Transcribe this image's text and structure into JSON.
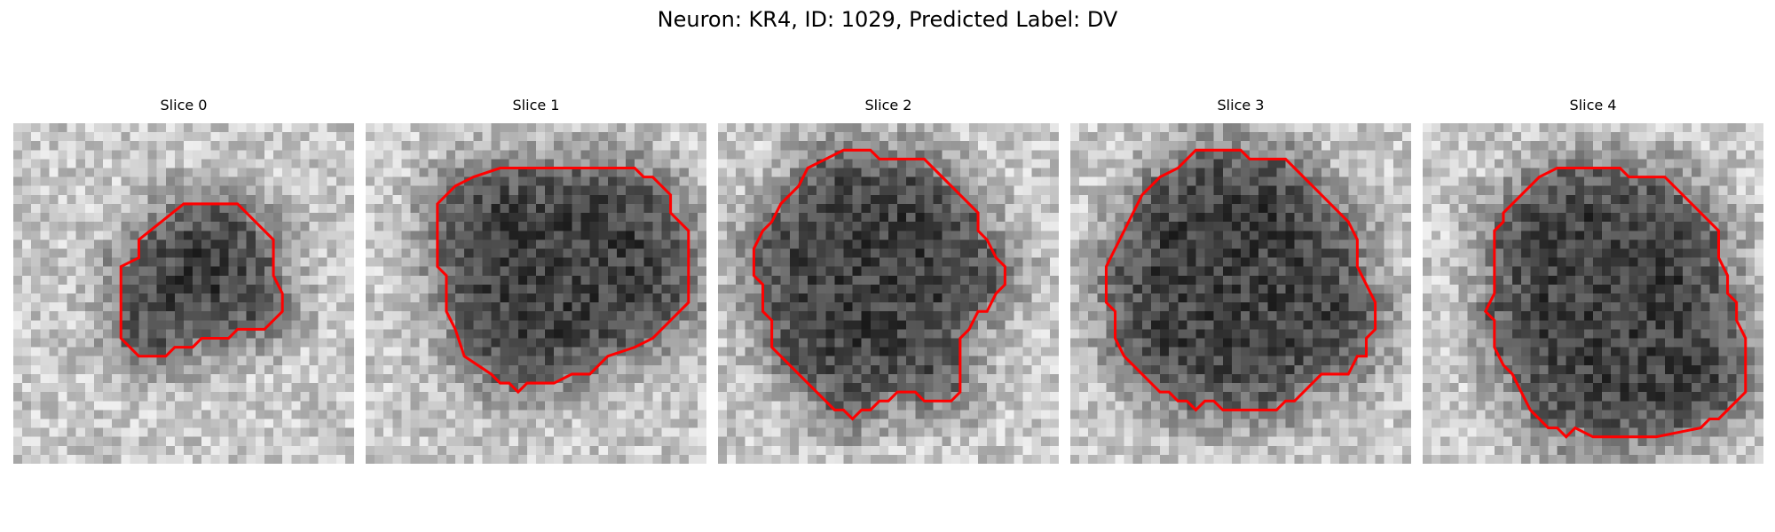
{
  "figure": {
    "title": "Neuron: KR4, ID: 1029, Predicted Label: DV"
  },
  "panels": [
    {
      "title": "Slice 0",
      "contour_color": "#ff0000",
      "contour": [
        [
          19,
          9
        ],
        [
          25,
          9
        ],
        [
          29,
          13
        ],
        [
          29,
          17
        ],
        [
          30,
          19
        ],
        [
          30,
          21
        ],
        [
          28,
          23
        ],
        [
          25,
          23
        ],
        [
          24,
          24
        ],
        [
          21,
          24
        ],
        [
          20,
          25
        ],
        [
          18,
          25
        ],
        [
          17,
          26
        ],
        [
          14,
          26
        ],
        [
          12,
          24
        ],
        [
          12,
          16
        ],
        [
          14,
          15
        ],
        [
          14,
          13
        ]
      ]
    },
    {
      "title": "Slice 1",
      "contour_color": "#ff0000",
      "contour": [
        [
          15,
          5
        ],
        [
          30,
          5
        ],
        [
          31,
          6
        ],
        [
          32,
          6
        ],
        [
          34,
          8
        ],
        [
          34,
          10
        ],
        [
          36,
          12
        ],
        [
          36,
          20
        ],
        [
          32,
          24
        ],
        [
          30,
          25
        ],
        [
          27,
          26
        ],
        [
          25,
          28
        ],
        [
          23,
          28
        ],
        [
          21,
          29
        ],
        [
          18,
          29
        ],
        [
          17,
          30
        ],
        [
          16,
          29
        ],
        [
          15,
          29
        ],
        [
          14,
          28
        ],
        [
          11,
          26
        ],
        [
          10,
          23
        ],
        [
          9,
          21
        ],
        [
          9,
          17
        ],
        [
          8,
          16
        ],
        [
          8,
          9
        ],
        [
          10,
          7
        ],
        [
          12,
          6
        ]
      ]
    },
    {
      "title": "Slice 2",
      "contour_color": "#ff0000",
      "contour": [
        [
          14,
          3
        ],
        [
          17,
          3
        ],
        [
          18,
          4
        ],
        [
          23,
          4
        ],
        [
          25,
          6
        ],
        [
          26,
          7
        ],
        [
          27,
          8
        ],
        [
          28,
          9
        ],
        [
          29,
          10
        ],
        [
          29,
          12
        ],
        [
          30,
          13
        ],
        [
          31,
          15
        ],
        [
          32,
          16
        ],
        [
          32,
          18
        ],
        [
          31,
          19
        ],
        [
          30,
          21
        ],
        [
          29,
          21
        ],
        [
          28,
          23
        ],
        [
          27,
          24
        ],
        [
          27,
          30
        ],
        [
          26,
          31
        ],
        [
          23,
          31
        ],
        [
          22,
          30
        ],
        [
          20,
          30
        ],
        [
          19,
          31
        ],
        [
          18,
          31
        ],
        [
          17,
          32
        ],
        [
          16,
          32
        ],
        [
          15,
          33
        ],
        [
          14,
          32
        ],
        [
          13,
          32
        ],
        [
          9,
          28
        ],
        [
          6,
          25
        ],
        [
          6,
          22
        ],
        [
          5,
          21
        ],
        [
          5,
          18
        ],
        [
          4,
          17
        ],
        [
          4,
          14
        ],
        [
          5,
          12
        ],
        [
          6,
          11
        ],
        [
          7,
          9
        ],
        [
          9,
          7
        ],
        [
          10,
          5
        ],
        [
          12,
          4
        ]
      ]
    },
    {
      "title": "Slice 3",
      "contour_color": "#ff0000",
      "contour": [
        [
          14,
          3
        ],
        [
          19,
          3
        ],
        [
          20,
          4
        ],
        [
          24,
          4
        ],
        [
          26,
          6
        ],
        [
          27,
          7
        ],
        [
          28,
          8
        ],
        [
          29,
          9
        ],
        [
          30,
          10
        ],
        [
          31,
          11
        ],
        [
          32,
          13
        ],
        [
          32,
          16
        ],
        [
          33,
          18
        ],
        [
          34,
          20
        ],
        [
          34,
          23
        ],
        [
          33,
          24
        ],
        [
          33,
          26
        ],
        [
          32,
          26
        ],
        [
          31,
          28
        ],
        [
          28,
          28
        ],
        [
          27,
          29
        ],
        [
          26,
          30
        ],
        [
          25,
          31
        ],
        [
          24,
          31
        ],
        [
          23,
          32
        ],
        [
          17,
          32
        ],
        [
          16,
          31
        ],
        [
          15,
          31
        ],
        [
          14,
          32
        ],
        [
          13,
          31
        ],
        [
          12,
          31
        ],
        [
          11,
          30
        ],
        [
          10,
          30
        ],
        [
          9,
          29
        ],
        [
          8,
          28
        ],
        [
          7,
          27
        ],
        [
          6,
          26
        ],
        [
          5,
          24
        ],
        [
          5,
          21
        ],
        [
          4,
          20
        ],
        [
          4,
          16
        ],
        [
          5,
          14
        ],
        [
          6,
          12
        ],
        [
          7,
          10
        ],
        [
          8,
          8
        ],
        [
          10,
          6
        ],
        [
          12,
          5
        ]
      ]
    },
    {
      "title": "Slice 4",
      "contour_color": "#ff0000",
      "contour": [
        [
          15,
          5
        ],
        [
          22,
          5
        ],
        [
          23,
          6
        ],
        [
          27,
          6
        ],
        [
          29,
          8
        ],
        [
          30,
          9
        ],
        [
          31,
          10
        ],
        [
          32,
          11
        ],
        [
          33,
          12
        ],
        [
          33,
          15
        ],
        [
          34,
          17
        ],
        [
          34,
          19
        ],
        [
          35,
          20
        ],
        [
          35,
          22
        ],
        [
          36,
          24
        ],
        [
          36,
          30
        ],
        [
          34,
          32
        ],
        [
          33,
          33
        ],
        [
          32,
          33
        ],
        [
          31,
          34
        ],
        [
          26,
          35
        ],
        [
          19,
          35
        ],
        [
          17,
          34
        ],
        [
          16,
          35
        ],
        [
          15,
          34
        ],
        [
          14,
          34
        ],
        [
          12,
          32
        ],
        [
          11,
          30
        ],
        [
          10,
          28
        ],
        [
          9,
          27
        ],
        [
          8,
          25
        ],
        [
          8,
          22
        ],
        [
          7,
          21
        ],
        [
          8,
          19
        ],
        [
          8,
          12
        ],
        [
          9,
          11
        ],
        [
          9,
          10
        ],
        [
          11,
          8
        ],
        [
          13,
          6
        ]
      ]
    }
  ]
}
